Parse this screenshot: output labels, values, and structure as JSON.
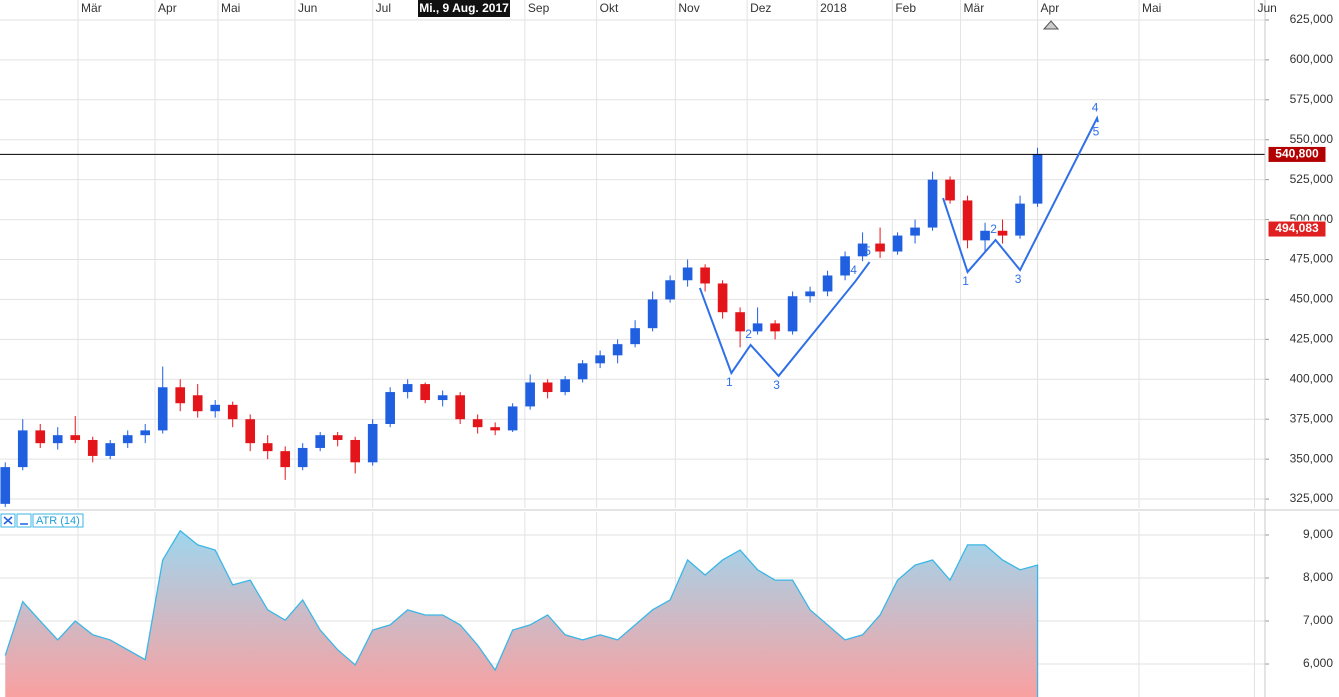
{
  "chart_data": [
    {
      "type": "candlestick",
      "crosshair_label": "Mi., 9 Aug. 2017",
      "x": [
        0,
        1,
        2,
        3,
        4,
        5,
        6,
        7,
        8,
        9,
        10,
        11,
        12,
        13,
        14,
        15,
        16,
        17,
        18,
        19,
        20,
        21,
        22,
        23,
        24,
        25,
        26,
        27,
        28,
        29,
        30,
        31,
        32,
        33,
        34,
        35,
        36,
        37,
        38,
        39,
        40,
        41,
        42,
        43,
        44,
        45,
        46,
        47,
        48,
        49,
        50,
        51,
        52,
        53,
        54,
        55,
        56,
        57,
        58,
        59
      ],
      "open": [
        322000,
        345000,
        368000,
        360000,
        365000,
        362000,
        352000,
        360000,
        365000,
        368000,
        395000,
        390000,
        380000,
        384000,
        375000,
        360000,
        355000,
        345000,
        357000,
        365000,
        362000,
        348000,
        372000,
        392000,
        397000,
        387000,
        390000,
        375000,
        370000,
        368000,
        383000,
        398000,
        392000,
        400000,
        410000,
        415000,
        422000,
        432000,
        450000,
        462000,
        470000,
        460000,
        442000,
        430000,
        435000,
        430000,
        452000,
        455000,
        465000,
        477000,
        485000,
        480000,
        490000,
        495000,
        525000,
        512000,
        487000,
        493000,
        490000,
        510000
      ],
      "high": [
        348000,
        375000,
        372000,
        370000,
        377000,
        364000,
        362000,
        368000,
        372000,
        408000,
        400000,
        397000,
        387000,
        386000,
        378000,
        365000,
        358000,
        360000,
        367000,
        367000,
        364000,
        375000,
        395000,
        400000,
        398000,
        393000,
        392000,
        378000,
        373000,
        385000,
        403000,
        400000,
        402000,
        412000,
        418000,
        425000,
        437000,
        455000,
        465000,
        475000,
        472000,
        462000,
        445000,
        445000,
        437000,
        455000,
        458000,
        468000,
        480000,
        492000,
        495000,
        492000,
        500000,
        530000,
        527000,
        515000,
        498000,
        500000,
        515000,
        545000
      ],
      "low": [
        320000,
        343000,
        357000,
        356000,
        360000,
        348000,
        350000,
        357000,
        360000,
        366000,
        380000,
        376000,
        376000,
        370000,
        355000,
        350000,
        337000,
        343000,
        355000,
        358000,
        341000,
        346000,
        370000,
        388000,
        385000,
        383000,
        372000,
        366000,
        365000,
        367000,
        381000,
        388000,
        390000,
        398000,
        407000,
        410000,
        420000,
        430000,
        448000,
        458000,
        455000,
        438000,
        420000,
        428000,
        425000,
        428000,
        448000,
        452000,
        462000,
        474000,
        476000,
        478000,
        485000,
        493000,
        510000,
        482000,
        480000,
        485000,
        488000,
        508000
      ],
      "close": [
        345000,
        368000,
        360000,
        365000,
        362000,
        352000,
        360000,
        365000,
        368000,
        395000,
        385000,
        380000,
        384000,
        375000,
        360000,
        355000,
        345000,
        357000,
        365000,
        362000,
        348000,
        372000,
        392000,
        397000,
        387000,
        390000,
        375000,
        370000,
        368000,
        383000,
        398000,
        392000,
        400000,
        410000,
        415000,
        422000,
        432000,
        450000,
        462000,
        470000,
        460000,
        442000,
        430000,
        435000,
        430000,
        452000,
        455000,
        465000,
        477000,
        485000,
        480000,
        490000,
        495000,
        525000,
        512000,
        487000,
        493000,
        490000,
        510000,
        540800
      ],
      "up_color": "#1f5fe0",
      "down_color": "#e3151b",
      "xlim": [
        -0.3,
        72
      ],
      "xticks": [
        {
          "value": 4.16,
          "label": "Mär"
        },
        {
          "value": 8.56,
          "label": "Apr"
        },
        {
          "value": 12.16,
          "label": "Mai"
        },
        {
          "value": 16.56,
          "label": "Jun"
        },
        {
          "value": 21.0,
          "label": "Jul"
        },
        {
          "value": 29.7,
          "label": "Sep"
        },
        {
          "value": 33.8,
          "label": "Okt"
        },
        {
          "value": 38.3,
          "label": "Nov"
        },
        {
          "value": 42.4,
          "label": "Dez"
        },
        {
          "value": 46.4,
          "label": "2018"
        },
        {
          "value": 50.7,
          "label": "Feb"
        },
        {
          "value": 54.6,
          "label": "Mär"
        },
        {
          "value": 59.0,
          "label": "Apr"
        },
        {
          "value": 64.8,
          "label": "Mai"
        },
        {
          "value": 71.4,
          "label": "Jun"
        }
      ],
      "ylim": [
        319400,
        637500
      ],
      "yticks": [
        {
          "value": 325000,
          "label": "325,000"
        },
        {
          "value": 350000,
          "label": "350,000"
        },
        {
          "value": 375000,
          "label": "375,000"
        },
        {
          "value": 400000,
          "label": "400,000"
        },
        {
          "value": 425000,
          "label": "425,000"
        },
        {
          "value": 450000,
          "label": "450,000"
        },
        {
          "value": 475000,
          "label": "475,000"
        },
        {
          "value": 500000,
          "label": "500,000"
        },
        {
          "value": 525000,
          "label": "525,000"
        },
        {
          "value": 550000,
          "label": "550,000"
        },
        {
          "value": 575000,
          "label": "575,000"
        },
        {
          "value": 600000,
          "label": "600,000"
        },
        {
          "value": 625000,
          "label": "625,000"
        }
      ],
      "grid": true,
      "last_price": {
        "value": 540800,
        "label": "540,800",
        "color": "#b30000"
      },
      "price_marker": {
        "value": 494083,
        "label": "494,083",
        "color": "#e02020"
      },
      "annotations": [
        {
          "color": "#2f6fe8",
          "x": [
            39.7,
            41.5,
            42.6,
            44.2,
            48.6,
            49.4
          ],
          "y": [
            457200,
            403900,
            421500,
            402100,
            461500,
            473400
          ],
          "labels": [
            null,
            "1",
            "2",
            "3",
            "4",
            "5"
          ]
        },
        {
          "color": "#2f6fe8",
          "x": [
            53.6,
            55.0,
            56.6,
            58.0,
            62.4,
            62.45
          ],
          "y": [
            513500,
            467200,
            487200,
            468400,
            563500,
            561000
          ],
          "labels": [
            null,
            "1",
            "2",
            "3",
            "4",
            "5"
          ]
        }
      ]
    },
    {
      "type": "area",
      "title": "ATR (14)",
      "x": [
        0,
        1,
        2,
        3,
        4,
        5,
        6,
        7,
        8,
        9,
        10,
        11,
        12,
        13,
        14,
        15,
        16,
        17,
        18,
        19,
        20,
        21,
        22,
        23,
        24,
        25,
        26,
        27,
        28,
        29,
        30,
        31,
        32,
        33,
        34,
        35,
        36,
        37,
        38,
        39,
        40,
        41,
        42,
        43,
        44,
        45,
        46,
        47,
        48,
        49,
        50,
        51,
        52,
        53,
        54,
        55,
        56,
        57,
        58,
        59
      ],
      "values": [
        6200,
        7450,
        7000,
        6560,
        7000,
        6680,
        6560,
        6330,
        6100,
        8420,
        9100,
        8770,
        8650,
        7840,
        7950,
        7260,
        7020,
        7490,
        6790,
        6330,
        5980,
        6790,
        6910,
        7260,
        7140,
        7140,
        6910,
        6440,
        5860,
        6790,
        6910,
        7140,
        6680,
        6560,
        6680,
        6560,
        6910,
        7260,
        7490,
        8420,
        8070,
        8420,
        8650,
        8190,
        7950,
        7950,
        7260,
        6910,
        6560,
        6680,
        7140,
        7950,
        8300,
        8420,
        7950,
        8770,
        8770,
        8420,
        8190,
        8300
      ],
      "color": "#3bb6e6",
      "fill_top": "#9fd6ee",
      "fill_bottom": "#f9a0a0",
      "xlim": [
        -0.3,
        72
      ],
      "ylim": [
        5233,
        9535
      ],
      "yticks": [
        {
          "value": 6000,
          "label": "6,000"
        },
        {
          "value": 7000,
          "label": "7,000"
        },
        {
          "value": 8000,
          "label": "8,000"
        },
        {
          "value": 9000,
          "label": "9,000"
        }
      ]
    }
  ]
}
